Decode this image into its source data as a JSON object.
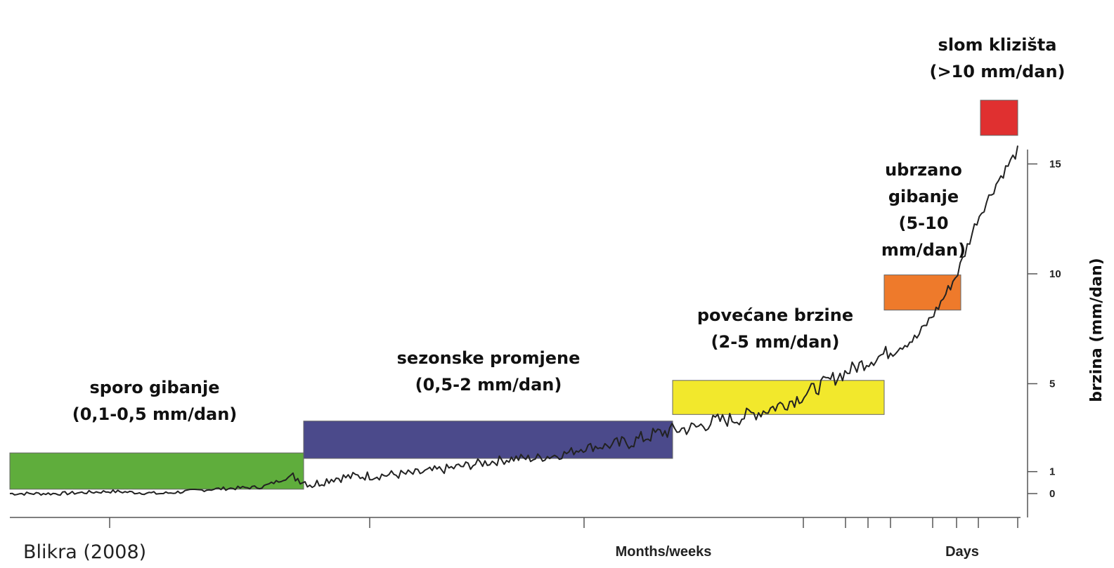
{
  "chart_data": {
    "type": "line",
    "source": "Blikra (2008)",
    "ylabel": "brzina (mm/dan)",
    "xlabels": [
      "Months/weeks",
      "Days"
    ],
    "yticks": [
      0,
      1,
      5,
      10,
      15
    ],
    "ylim": [
      0,
      15.5
    ],
    "phases": [
      {
        "lines": [
          "sporo gibanje",
          "(0,1-0,5 mm/dan)"
        ],
        "color": "#5fad3c",
        "y_low": 0.2,
        "y_high": 1.85
      },
      {
        "lines": [
          "sezonske promjene",
          "(0,5-2 mm/dan)"
        ],
        "color": "#4b4a8b",
        "y_low": 1.6,
        "y_high": 3.3
      },
      {
        "lines": [
          "povećane brzine",
          "(2-5 mm/dan)"
        ],
        "color": "#f2e82c",
        "y_low": 3.6,
        "y_high": 5.15
      },
      {
        "lines": [
          "ubrzano",
          "gibanje",
          "(5-10",
          "mm/dan)"
        ],
        "color": "#ee7a2b",
        "y_low": 8.35,
        "y_high": 9.95
      },
      {
        "lines": [
          "slom klizišta",
          "(>10 mm/dan)"
        ],
        "color": "#e03030",
        "y_low": 16.3,
        "y_high": 17.9
      }
    ],
    "series": [
      {
        "x": [
          0,
          5,
          10,
          15,
          20,
          25,
          28,
          30,
          32,
          35,
          40,
          43,
          47,
          50,
          52,
          55,
          57,
          60,
          62,
          64,
          66,
          68,
          70,
          72,
          75,
          78,
          80,
          82,
          85,
          87,
          90,
          92,
          94,
          96,
          98,
          100
        ],
        "values": [
          0,
          0,
          0.1,
          0,
          0.2,
          0.3,
          0.8,
          0.4,
          0.7,
          0.8,
          0.9,
          1.1,
          1.4,
          1.6,
          1.6,
          1.8,
          2.1,
          2.2,
          2.4,
          2.7,
          2.9,
          3.0,
          3.3,
          3.4,
          3.8,
          4.3,
          4.8,
          5.3,
          6.0,
          6.4,
          7.1,
          8.4,
          10.0,
          12.5,
          14.2,
          15.6
        ]
      }
    ]
  }
}
